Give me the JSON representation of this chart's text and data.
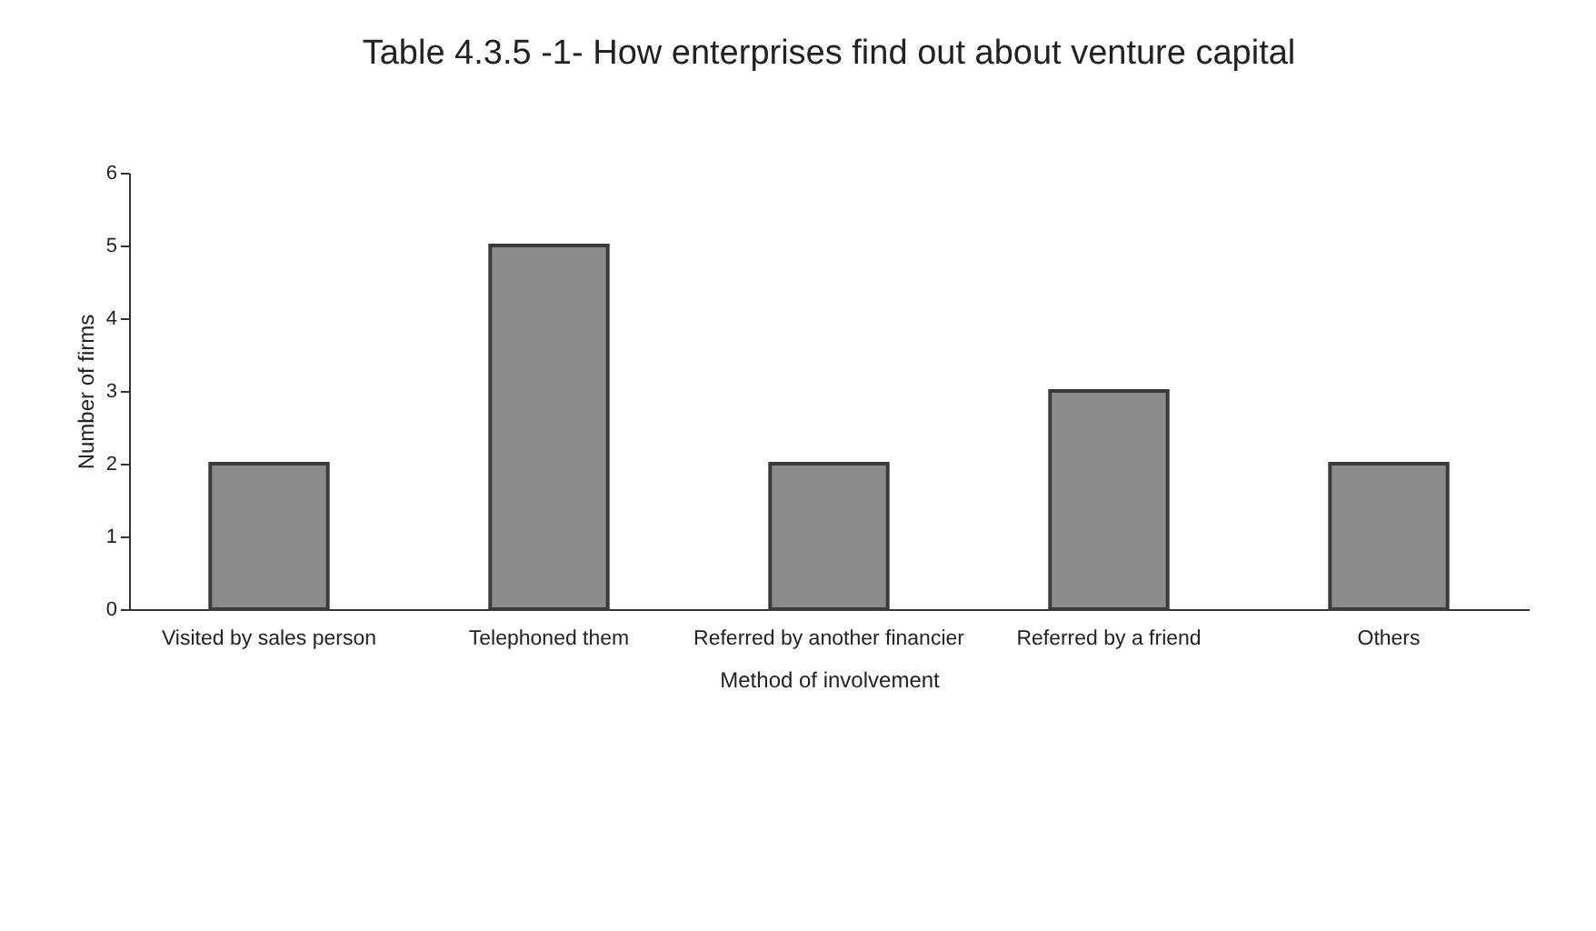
{
  "chart_data": {
    "type": "bar",
    "title": "Table 4.3.5 -1- How enterprises find out about venture capital",
    "xlabel": "Method of involvement",
    "ylabel": "Number of firms",
    "categories": [
      "Visited by sales person",
      "Telephoned them",
      "Referred by another financier",
      "Referred by a friend",
      "Others"
    ],
    "values": [
      2,
      5,
      2,
      3,
      2
    ],
    "color": "#8c8c8c",
    "ylim": [
      0,
      6
    ],
    "yticks": [
      0,
      1,
      2,
      3,
      4,
      5,
      6
    ],
    "grid": false
  }
}
